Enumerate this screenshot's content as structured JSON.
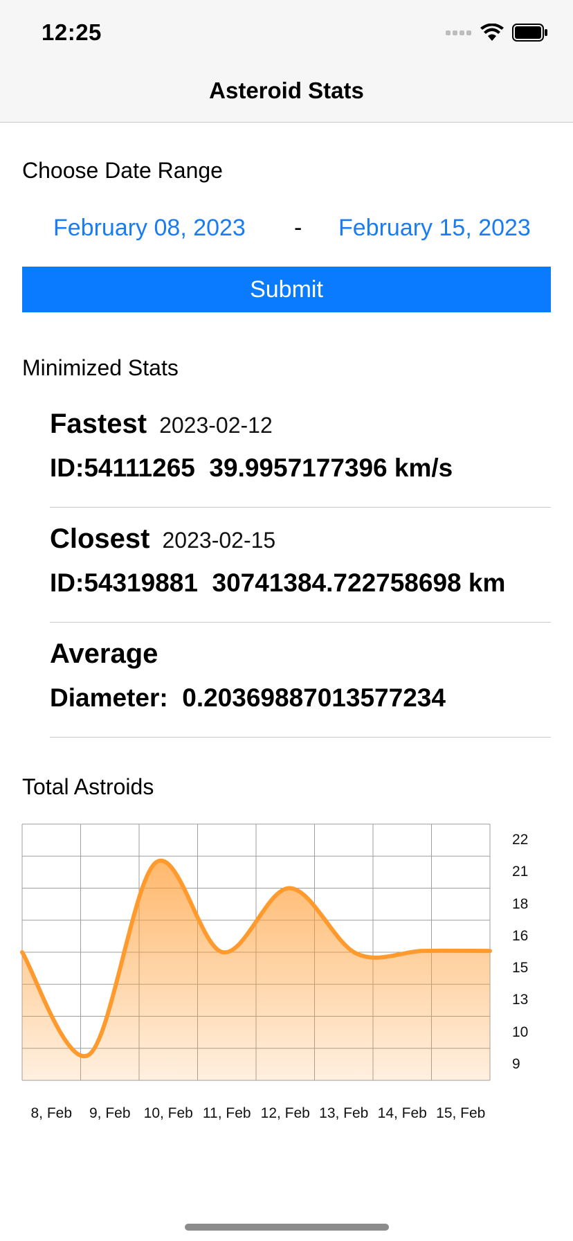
{
  "status_bar": {
    "time": "12:25"
  },
  "nav": {
    "title": "Asteroid Stats"
  },
  "date_range": {
    "heading": "Choose Date Range",
    "start": "February 08, 2023",
    "separator": "-",
    "end": "February 15, 2023",
    "submit_label": "Submit"
  },
  "stats": {
    "heading": "Minimized Stats",
    "fastest": {
      "label": "Fastest",
      "date": "2023-02-12",
      "id": "ID:54111265",
      "value": "39.9957177396 km/s"
    },
    "closest": {
      "label": "Closest",
      "date": "2023-02-15",
      "id": "ID:54319881",
      "value": "30741384.722758698 km"
    },
    "average": {
      "label": "Average",
      "metric": "Diameter:",
      "value": "0.20369887013577234"
    }
  },
  "chart_heading": "Total Astroids",
  "colors": {
    "accent": "#0a7bff",
    "link": "#1a7cf3",
    "series": "#ff9a2e"
  },
  "chart_data": {
    "type": "area",
    "title": "Total Astroids",
    "categories": [
      "8, Feb",
      "9, Feb",
      "10, Feb",
      "11, Feb",
      "12, Feb",
      "13, Feb",
      "14, Feb",
      "15, Feb"
    ],
    "series": [
      {
        "values": [
          14.5,
          6.5,
          21.5,
          14.5,
          19.5,
          14.4,
          14.6,
          14.6
        ]
      }
    ],
    "ytick_labels": [
      "22",
      "21",
      "18",
      "16",
      "15",
      "13",
      "10",
      "9"
    ],
    "ylim": [
      4.5,
      24.5
    ],
    "grid": true,
    "yaxis_position": "right"
  }
}
